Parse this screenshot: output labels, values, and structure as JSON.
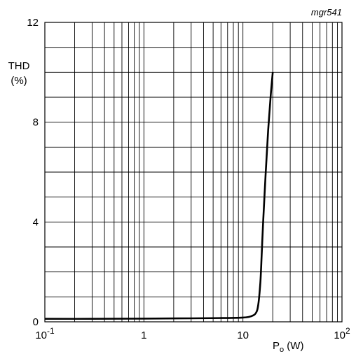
{
  "figure_id": "mgr541",
  "chart_data": {
    "type": "line",
    "title": "",
    "xlabel": "P",
    "xlabel_subscript": "o",
    "xlabel_unit": " (W)",
    "ylabel_line1": "THD",
    "ylabel_line2": "(%)",
    "x_scale": "log",
    "xlim": [
      0.1,
      100
    ],
    "ylim": [
      0,
      12
    ],
    "grid": true,
    "x_tick_labels": [
      {
        "value": 0.1,
        "base": "10",
        "exp": "-1"
      },
      {
        "value": 1,
        "base": "1",
        "exp": ""
      },
      {
        "value": 10,
        "base": "10",
        "exp": ""
      },
      {
        "value": 100,
        "base": "10",
        "exp": "2"
      }
    ],
    "y_tick_labels": [
      {
        "value": 0,
        "label": "0"
      },
      {
        "value": 4,
        "label": "4"
      },
      {
        "value": 8,
        "label": "8"
      },
      {
        "value": 12,
        "label": "12"
      }
    ],
    "series": [
      {
        "x": [
          0.1,
          0.3,
          1,
          3,
          6,
          10,
          12,
          13.5,
          14.3,
          15,
          15.5,
          16,
          17,
          18,
          19,
          20
        ],
        "y": [
          0.12,
          0.12,
          0.13,
          0.14,
          0.15,
          0.17,
          0.22,
          0.35,
          0.7,
          1.6,
          2.8,
          4.0,
          6.0,
          7.7,
          9.0,
          10.0
        ]
      }
    ]
  }
}
